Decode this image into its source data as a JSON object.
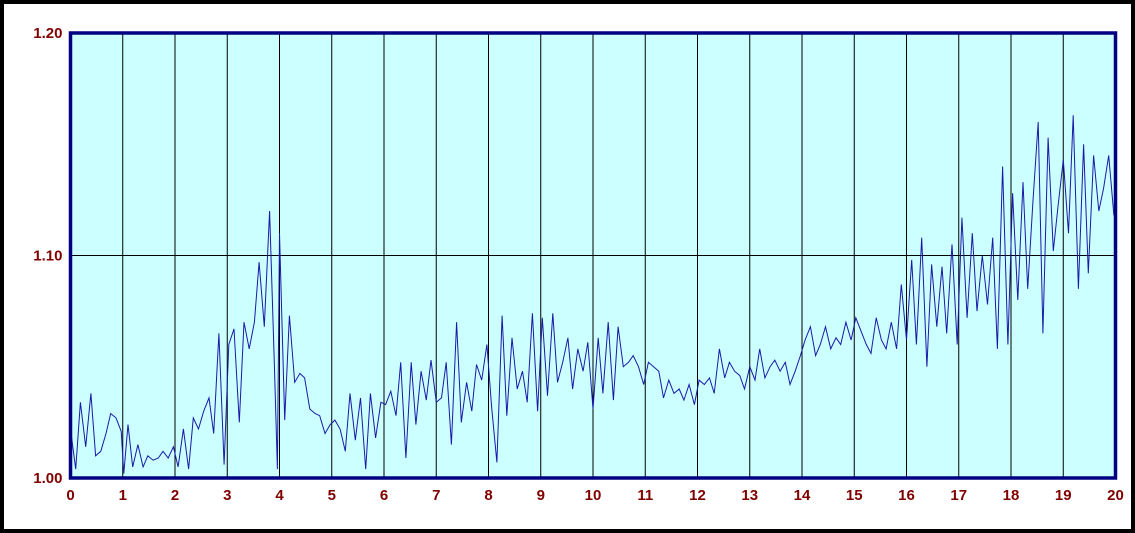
{
  "chart_data": {
    "type": "line",
    "title": "",
    "xlabel": "",
    "ylabel": "",
    "xlim": [
      0,
      20
    ],
    "ylim": [
      1.0,
      1.2
    ],
    "x_ticks": [
      "0",
      "1",
      "2",
      "3",
      "4",
      "5",
      "6",
      "7",
      "8",
      "9",
      "10",
      "11",
      "12",
      "13",
      "14",
      "15",
      "16",
      "17",
      "18",
      "19",
      "20"
    ],
    "y_ticks": [
      "1.00",
      "1.10",
      "1.20"
    ],
    "grid": {
      "vertical": true,
      "horizontal": true
    },
    "legend": "none",
    "colors": {
      "plot_background": "#ccffff",
      "plot_border": "#000080",
      "series": "#1a1aa8",
      "grid": "#000000",
      "tick_labels": "#800000"
    },
    "series": [
      {
        "values": [
          [
            0.0,
            1.022
          ],
          [
            0.1,
            1.004
          ],
          [
            0.19,
            1.034
          ],
          [
            0.29,
            1.014
          ],
          [
            0.39,
            1.038
          ],
          [
            0.48,
            1.01
          ],
          [
            0.58,
            1.012
          ],
          [
            0.68,
            1.02
          ],
          [
            0.77,
            1.029
          ],
          [
            0.87,
            1.027
          ],
          [
            0.97,
            1.021
          ],
          [
            1.02,
            1.002
          ],
          [
            1.1,
            1.024
          ],
          [
            1.19,
            1.005
          ],
          [
            1.29,
            1.015
          ],
          [
            1.39,
            1.005
          ],
          [
            1.48,
            1.01
          ],
          [
            1.58,
            1.008
          ],
          [
            1.68,
            1.009
          ],
          [
            1.77,
            1.012
          ],
          [
            1.87,
            1.009
          ],
          [
            1.97,
            1.014
          ],
          [
            2.06,
            1.005
          ],
          [
            2.16,
            1.022
          ],
          [
            2.26,
            1.004
          ],
          [
            2.35,
            1.027
          ],
          [
            2.45,
            1.022
          ],
          [
            2.55,
            1.03
          ],
          [
            2.65,
            1.036
          ],
          [
            2.74,
            1.02
          ],
          [
            2.84,
            1.065
          ],
          [
            2.94,
            1.006
          ],
          [
            3.03,
            1.06
          ],
          [
            3.13,
            1.067
          ],
          [
            3.23,
            1.025
          ],
          [
            3.32,
            1.07
          ],
          [
            3.42,
            1.058
          ],
          [
            3.52,
            1.07
          ],
          [
            3.61,
            1.097
          ],
          [
            3.71,
            1.068
          ],
          [
            3.81,
            1.12
          ],
          [
            3.9,
            1.052
          ],
          [
            3.96,
            1.004
          ],
          [
            4.0,
            1.11
          ],
          [
            4.1,
            1.026
          ],
          [
            4.19,
            1.073
          ],
          [
            4.29,
            1.043
          ],
          [
            4.39,
            1.047
          ],
          [
            4.48,
            1.045
          ],
          [
            4.58,
            1.031
          ],
          [
            4.68,
            1.029
          ],
          [
            4.77,
            1.028
          ],
          [
            4.87,
            1.02
          ],
          [
            4.97,
            1.024
          ],
          [
            5.06,
            1.026
          ],
          [
            5.16,
            1.022
          ],
          [
            5.26,
            1.012
          ],
          [
            5.35,
            1.038
          ],
          [
            5.45,
            1.017
          ],
          [
            5.55,
            1.036
          ],
          [
            5.65,
            1.004
          ],
          [
            5.74,
            1.038
          ],
          [
            5.84,
            1.018
          ],
          [
            5.94,
            1.034
          ],
          [
            6.03,
            1.033
          ],
          [
            6.13,
            1.039
          ],
          [
            6.23,
            1.028
          ],
          [
            6.32,
            1.052
          ],
          [
            6.42,
            1.009
          ],
          [
            6.52,
            1.052
          ],
          [
            6.61,
            1.024
          ],
          [
            6.71,
            1.048
          ],
          [
            6.81,
            1.035
          ],
          [
            6.9,
            1.053
          ],
          [
            7.0,
            1.034
          ],
          [
            7.1,
            1.036
          ],
          [
            7.19,
            1.052
          ],
          [
            7.29,
            1.015
          ],
          [
            7.39,
            1.07
          ],
          [
            7.48,
            1.025
          ],
          [
            7.58,
            1.043
          ],
          [
            7.68,
            1.03
          ],
          [
            7.77,
            1.051
          ],
          [
            7.87,
            1.044
          ],
          [
            7.97,
            1.06
          ],
          [
            8.06,
            1.032
          ],
          [
            8.16,
            1.007
          ],
          [
            8.26,
            1.073
          ],
          [
            8.35,
            1.028
          ],
          [
            8.45,
            1.063
          ],
          [
            8.55,
            1.04
          ],
          [
            8.65,
            1.048
          ],
          [
            8.74,
            1.034
          ],
          [
            8.84,
            1.074
          ],
          [
            8.94,
            1.03
          ],
          [
            9.03,
            1.072
          ],
          [
            9.13,
            1.037
          ],
          [
            9.23,
            1.074
          ],
          [
            9.32,
            1.043
          ],
          [
            9.42,
            1.052
          ],
          [
            9.52,
            1.063
          ],
          [
            9.61,
            1.04
          ],
          [
            9.71,
            1.058
          ],
          [
            9.81,
            1.048
          ],
          [
            9.9,
            1.061
          ],
          [
            10.0,
            1.031
          ],
          [
            10.1,
            1.063
          ],
          [
            10.19,
            1.038
          ],
          [
            10.29,
            1.07
          ],
          [
            10.39,
            1.035
          ],
          [
            10.48,
            1.068
          ],
          [
            10.58,
            1.05
          ],
          [
            10.68,
            1.052
          ],
          [
            10.77,
            1.055
          ],
          [
            10.87,
            1.05
          ],
          [
            10.97,
            1.042
          ],
          [
            11.06,
            1.052
          ],
          [
            11.16,
            1.05
          ],
          [
            11.26,
            1.048
          ],
          [
            11.35,
            1.036
          ],
          [
            11.45,
            1.044
          ],
          [
            11.55,
            1.038
          ],
          [
            11.65,
            1.04
          ],
          [
            11.74,
            1.035
          ],
          [
            11.84,
            1.042
          ],
          [
            11.94,
            1.033
          ],
          [
            12.03,
            1.044
          ],
          [
            12.13,
            1.042
          ],
          [
            12.23,
            1.045
          ],
          [
            12.32,
            1.038
          ],
          [
            12.42,
            1.058
          ],
          [
            12.52,
            1.045
          ],
          [
            12.61,
            1.052
          ],
          [
            12.71,
            1.048
          ],
          [
            12.81,
            1.046
          ],
          [
            12.9,
            1.04
          ],
          [
            13.0,
            1.05
          ],
          [
            13.1,
            1.044
          ],
          [
            13.19,
            1.058
          ],
          [
            13.29,
            1.045
          ],
          [
            13.39,
            1.05
          ],
          [
            13.48,
            1.053
          ],
          [
            13.58,
            1.048
          ],
          [
            13.68,
            1.052
          ],
          [
            13.77,
            1.042
          ],
          [
            13.87,
            1.048
          ],
          [
            13.97,
            1.055
          ],
          [
            14.06,
            1.062
          ],
          [
            14.16,
            1.068
          ],
          [
            14.26,
            1.055
          ],
          [
            14.35,
            1.06
          ],
          [
            14.45,
            1.068
          ],
          [
            14.55,
            1.058
          ],
          [
            14.65,
            1.063
          ],
          [
            14.74,
            1.06
          ],
          [
            14.84,
            1.07
          ],
          [
            14.94,
            1.062
          ],
          [
            15.03,
            1.072
          ],
          [
            15.13,
            1.066
          ],
          [
            15.23,
            1.06
          ],
          [
            15.32,
            1.056
          ],
          [
            15.42,
            1.072
          ],
          [
            15.52,
            1.062
          ],
          [
            15.61,
            1.058
          ],
          [
            15.71,
            1.07
          ],
          [
            15.81,
            1.058
          ],
          [
            15.9,
            1.087
          ],
          [
            16.0,
            1.062
          ],
          [
            16.1,
            1.098
          ],
          [
            16.19,
            1.06
          ],
          [
            16.29,
            1.108
          ],
          [
            16.39,
            1.05
          ],
          [
            16.48,
            1.096
          ],
          [
            16.58,
            1.068
          ],
          [
            16.68,
            1.095
          ],
          [
            16.77,
            1.065
          ],
          [
            16.87,
            1.105
          ],
          [
            16.97,
            1.06
          ],
          [
            17.06,
            1.117
          ],
          [
            17.16,
            1.072
          ],
          [
            17.26,
            1.11
          ],
          [
            17.35,
            1.075
          ],
          [
            17.45,
            1.1
          ],
          [
            17.55,
            1.078
          ],
          [
            17.65,
            1.108
          ],
          [
            17.74,
            1.058
          ],
          [
            17.84,
            1.14
          ],
          [
            17.94,
            1.06
          ],
          [
            18.03,
            1.128
          ],
          [
            18.13,
            1.08
          ],
          [
            18.23,
            1.133
          ],
          [
            18.32,
            1.085
          ],
          [
            18.42,
            1.124
          ],
          [
            18.52,
            1.16
          ],
          [
            18.61,
            1.065
          ],
          [
            18.71,
            1.153
          ],
          [
            18.81,
            1.102
          ],
          [
            18.9,
            1.122
          ],
          [
            19.0,
            1.143
          ],
          [
            19.1,
            1.11
          ],
          [
            19.19,
            1.163
          ],
          [
            19.29,
            1.085
          ],
          [
            19.39,
            1.15
          ],
          [
            19.48,
            1.092
          ],
          [
            19.58,
            1.145
          ],
          [
            19.68,
            1.12
          ],
          [
            19.77,
            1.13
          ],
          [
            19.87,
            1.145
          ],
          [
            19.97,
            1.118
          ]
        ]
      }
    ]
  }
}
